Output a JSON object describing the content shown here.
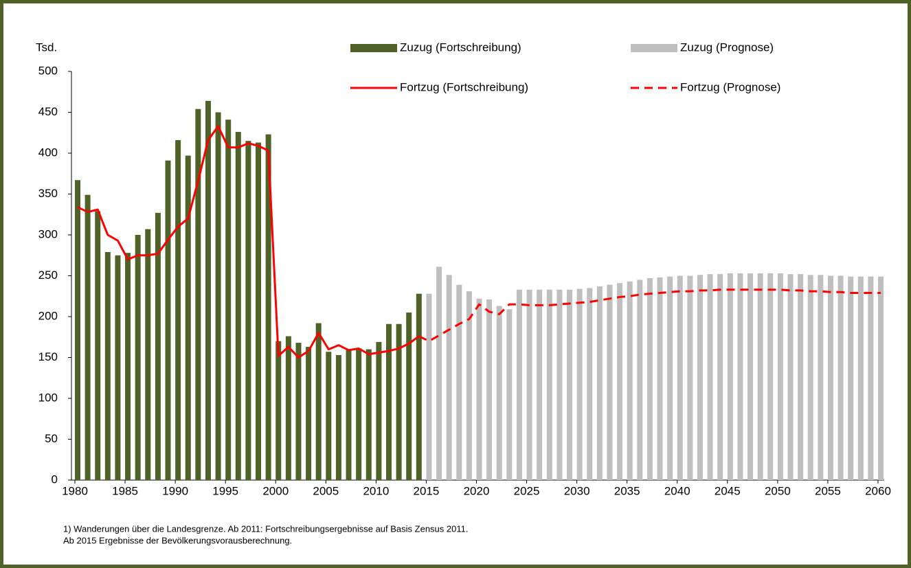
{
  "chart_data": {
    "type": "combo",
    "y_unit_label": "Tsd.",
    "x": [
      1980,
      1981,
      1982,
      1983,
      1984,
      1985,
      1986,
      1987,
      1988,
      1989,
      1990,
      1991,
      1992,
      1993,
      1994,
      1995,
      1996,
      1997,
      1998,
      1999,
      2000,
      2001,
      2002,
      2003,
      2004,
      2005,
      2006,
      2007,
      2008,
      2009,
      2010,
      2011,
      2012,
      2013,
      2014,
      2015,
      2016,
      2017,
      2018,
      2019,
      2020,
      2021,
      2022,
      2023,
      2024,
      2025,
      2026,
      2027,
      2028,
      2029,
      2030,
      2031,
      2032,
      2033,
      2034,
      2035,
      2036,
      2037,
      2038,
      2039,
      2040,
      2041,
      2042,
      2043,
      2044,
      2045,
      2046,
      2047,
      2048,
      2049,
      2050,
      2051,
      2052,
      2053,
      2054,
      2055,
      2056,
      2057,
      2058,
      2059,
      2060
    ],
    "series": [
      {
        "name": "Zuzug (Fortschreibung)",
        "type": "bar",
        "color": "#4f6228",
        "values": [
          367,
          349,
          329,
          279,
          275,
          278,
          300,
          307,
          327,
          391,
          416,
          397,
          454,
          464,
          450,
          441,
          426,
          415,
          413,
          423,
          170,
          176,
          168,
          163,
          192,
          157,
          153,
          160,
          161,
          160,
          169,
          191,
          191,
          205,
          228,
          null,
          null,
          null,
          null,
          null,
          null,
          null,
          null,
          null,
          null,
          null,
          null,
          null,
          null,
          null,
          null,
          null,
          null,
          null,
          null,
          null,
          null,
          null,
          null,
          null,
          null,
          null,
          null,
          null,
          null,
          null,
          null,
          null,
          null,
          null,
          null,
          null,
          null,
          null,
          null,
          null,
          null,
          null,
          null,
          null,
          null
        ]
      },
      {
        "name": "Zuzug (Prognose)",
        "type": "bar",
        "color": "#bfbfbf",
        "values": [
          null,
          null,
          null,
          null,
          null,
          null,
          null,
          null,
          null,
          null,
          null,
          null,
          null,
          null,
          null,
          null,
          null,
          null,
          null,
          null,
          null,
          null,
          null,
          null,
          null,
          null,
          null,
          null,
          null,
          null,
          null,
          null,
          null,
          null,
          null,
          228,
          261,
          251,
          239,
          231,
          222,
          221,
          213,
          209,
          233,
          233,
          233,
          233,
          233,
          233,
          234,
          235,
          237,
          239,
          241,
          243,
          245,
          247,
          248,
          249,
          250,
          250,
          251,
          252,
          252,
          253,
          253,
          253,
          253,
          253,
          253,
          252,
          252,
          251,
          251,
          250,
          250,
          249,
          249,
          249,
          249
        ]
      },
      {
        "name": "Fortzug (Fortschreibung)",
        "type": "line",
        "color": "#ff0000",
        "dashed": false,
        "values": [
          334,
          328,
          331,
          300,
          293,
          270,
          275,
          275,
          277,
          294,
          310,
          320,
          366,
          416,
          433,
          407,
          407,
          412,
          409,
          403,
          152,
          163,
          150,
          158,
          180,
          160,
          165,
          159,
          161,
          154,
          156,
          158,
          161,
          167,
          176,
          null,
          null,
          null,
          null,
          null,
          null,
          null,
          null,
          null,
          null,
          null,
          null,
          null,
          null,
          null,
          null,
          null,
          null,
          null,
          null,
          null,
          null,
          null,
          null,
          null,
          null,
          null,
          null,
          null,
          null,
          null,
          null,
          null,
          null,
          null,
          null,
          null,
          null,
          null,
          null,
          null,
          null,
          null,
          null,
          null,
          null
        ]
      },
      {
        "name": "Fortzug (Prognose)",
        "type": "line",
        "color": "#ff0000",
        "dashed": true,
        "values": [
          null,
          null,
          null,
          null,
          null,
          null,
          null,
          null,
          null,
          null,
          null,
          null,
          null,
          null,
          null,
          null,
          null,
          null,
          null,
          null,
          null,
          null,
          null,
          null,
          null,
          null,
          null,
          null,
          null,
          null,
          null,
          null,
          null,
          null,
          176,
          170,
          177,
          184,
          191,
          197,
          215,
          206,
          203,
          215,
          215,
          214,
          214,
          214,
          215,
          216,
          217,
          218,
          220,
          222,
          224,
          225,
          227,
          228,
          229,
          230,
          231,
          231,
          232,
          232,
          233,
          233,
          233,
          233,
          233,
          233,
          233,
          232,
          232,
          231,
          231,
          230,
          230,
          229,
          229,
          229,
          229
        ]
      }
    ],
    "xlim": [
      1980,
      2060
    ],
    "xticks": [
      1980,
      1985,
      1990,
      1995,
      2000,
      2005,
      2010,
      2015,
      2020,
      2025,
      2030,
      2035,
      2040,
      2045,
      2050,
      2055,
      2060
    ],
    "ylim": [
      0,
      500
    ],
    "yticks": [
      0,
      50,
      100,
      150,
      200,
      250,
      300,
      350,
      400,
      450,
      500
    ],
    "grid": false,
    "notes": [
      "1) Wanderungen über die Landesgrenze. Ab 2011:  Fortschreibungsergebnisse auf Basis Zensus 2011.",
      "Ab 2015 Ergebnisse der Bevölkerungsvorausberechnung."
    ]
  }
}
